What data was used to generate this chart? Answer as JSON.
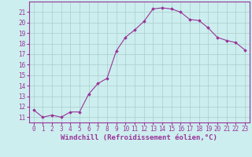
{
  "x": [
    0,
    1,
    2,
    3,
    4,
    5,
    6,
    7,
    8,
    9,
    10,
    11,
    12,
    13,
    14,
    15,
    16,
    17,
    18,
    19,
    20,
    21,
    22,
    23
  ],
  "y": [
    11.7,
    11.0,
    11.2,
    11.0,
    11.5,
    11.5,
    13.2,
    14.2,
    14.7,
    17.3,
    18.6,
    19.3,
    20.1,
    21.3,
    21.4,
    21.3,
    21.0,
    20.3,
    20.2,
    19.5,
    18.6,
    18.3,
    18.1,
    17.4
  ],
  "line_color": "#993399",
  "marker": "D",
  "marker_size": 1.8,
  "bg_color": "#cceeee",
  "grid_color": "#aacccc",
  "xlabel": "Windchill (Refroidissement éolien,°C)",
  "ylim": [
    10.5,
    22.0
  ],
  "xlim": [
    -0.5,
    23.5
  ],
  "yticks": [
    11,
    12,
    13,
    14,
    15,
    16,
    17,
    18,
    19,
    20,
    21
  ],
  "xticks": [
    0,
    1,
    2,
    3,
    4,
    5,
    6,
    7,
    8,
    9,
    10,
    11,
    12,
    13,
    14,
    15,
    16,
    17,
    18,
    19,
    20,
    21,
    22,
    23
  ],
  "tick_fontsize": 5.5,
  "xlabel_fontsize": 6.5,
  "text_color": "#993399",
  "border_color": "#993399",
  "linewidth": 0.8
}
